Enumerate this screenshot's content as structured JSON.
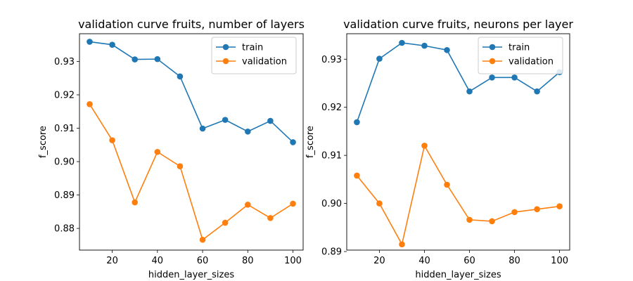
{
  "colors": {
    "train": "#1f77b4",
    "validation": "#ff7f0e"
  },
  "chart_data": [
    {
      "type": "line",
      "title": "validation curve fruits, number of layers",
      "xlabel": "hidden_layer_sizes",
      "ylabel": "f_score",
      "x": [
        10,
        20,
        30,
        40,
        50,
        60,
        70,
        80,
        90,
        100
      ],
      "xlim": [
        5.5,
        104.5
      ],
      "ylim": [
        0.8735,
        0.9383
      ],
      "xticks": [
        20,
        40,
        60,
        80,
        100
      ],
      "yticks": [
        0.88,
        0.89,
        0.9,
        0.91,
        0.92,
        0.93
      ],
      "ytick_labels": [
        "0.88",
        "0.89",
        "0.90",
        "0.91",
        "0.92",
        "0.93"
      ],
      "legend": "top-right",
      "grid": false,
      "series": [
        {
          "name": "train",
          "values": [
            0.9359,
            0.935,
            0.9306,
            0.9307,
            0.9255,
            0.9099,
            0.9125,
            0.909,
            0.9122,
            0.9058
          ]
        },
        {
          "name": "validation",
          "values": [
            0.9172,
            0.9064,
            0.8878,
            0.9029,
            0.8986,
            0.8766,
            0.8817,
            0.8871,
            0.8831,
            0.8874
          ]
        }
      ]
    },
    {
      "type": "line",
      "title": "validation curve fruits, neurons per layer",
      "xlabel": "hidden_layer_sizes",
      "ylabel": "f_score",
      "x": [
        10,
        20,
        30,
        40,
        50,
        60,
        70,
        80,
        90,
        100
      ],
      "xlim": [
        5.5,
        104.5
      ],
      "ylim": [
        0.8903,
        0.9353
      ],
      "xticks": [
        20,
        40,
        60,
        80,
        100
      ],
      "yticks": [
        0.89,
        0.9,
        0.91,
        0.92,
        0.93
      ],
      "ytick_labels": [
        "0.89",
        "0.90",
        "0.91",
        "0.92",
        "0.93"
      ],
      "legend": "top-right",
      "grid": false,
      "series": [
        {
          "name": "train",
          "values": [
            0.9169,
            0.9301,
            0.9334,
            0.9328,
            0.9319,
            0.9233,
            0.9262,
            0.9262,
            0.9233,
            0.9273
          ]
        },
        {
          "name": "validation",
          "values": [
            0.9058,
            0.9,
            0.8915,
            0.912,
            0.9039,
            0.8966,
            0.8963,
            0.8982,
            0.8988,
            0.8994
          ]
        }
      ]
    }
  ]
}
